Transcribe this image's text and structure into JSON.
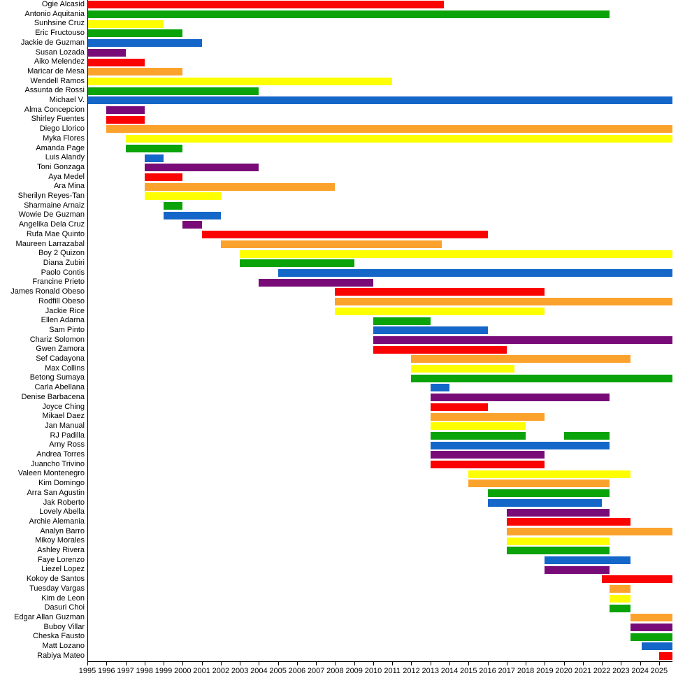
{
  "chart_data": {
    "type": "bar",
    "variant": "horizontal-timeline-gantt",
    "title": "",
    "xlabel": "",
    "ylabel": "",
    "grid": false,
    "legend": "none",
    "xlim": [
      1995,
      2025.7
    ],
    "x_ticks": [
      1995,
      1996,
      1997,
      1998,
      1999,
      2000,
      2001,
      2002,
      2003,
      2004,
      2005,
      2006,
      2007,
      2008,
      2009,
      2010,
      2011,
      2012,
      2013,
      2014,
      2015,
      2016,
      2017,
      2018,
      2019,
      2020,
      2021,
      2022,
      2023,
      2024,
      2025
    ],
    "palette": {
      "red": "#FA0303",
      "orange": "#FBA22C",
      "yellow": "#FDFE00",
      "green": "#0AA30A",
      "blue": "#1467C8",
      "purple": "#780B78"
    },
    "axis_color": "#000000",
    "people": [
      {
        "name": "Ogie Alcasid",
        "color": "red",
        "segments": [
          [
            1995,
            2013.7
          ]
        ]
      },
      {
        "name": "Antonio Aquitania",
        "color": "green",
        "segments": [
          [
            1995,
            2022.4
          ]
        ]
      },
      {
        "name": "Sunhsine Cruz",
        "color": "yellow",
        "segments": [
          [
            1995,
            1999
          ]
        ]
      },
      {
        "name": "Eric Fructouso",
        "color": "green",
        "segments": [
          [
            1995,
            2000
          ]
        ]
      },
      {
        "name": "Jackie de Guzman",
        "color": "blue",
        "segments": [
          [
            1995,
            2001
          ]
        ]
      },
      {
        "name": "Susan Lozada",
        "color": "purple",
        "segments": [
          [
            1995,
            1997
          ]
        ]
      },
      {
        "name": "Aiko Melendez",
        "color": "red",
        "segments": [
          [
            1995,
            1998
          ]
        ]
      },
      {
        "name": "Maricar de Mesa",
        "color": "orange",
        "segments": [
          [
            1995,
            2000
          ]
        ]
      },
      {
        "name": "Wendell Ramos",
        "color": "yellow",
        "segments": [
          [
            1995,
            2011
          ]
        ]
      },
      {
        "name": "Assunta de Rossi",
        "color": "green",
        "segments": [
          [
            1995,
            2004
          ]
        ]
      },
      {
        "name": "Michael V.",
        "color": "blue",
        "segments": [
          [
            1995,
            2025.7
          ]
        ]
      },
      {
        "name": "Alma Concepcion",
        "color": "purple",
        "segments": [
          [
            1996,
            1998
          ]
        ]
      },
      {
        "name": "Shirley Fuentes",
        "color": "red",
        "segments": [
          [
            1996,
            1998
          ]
        ]
      },
      {
        "name": "Diego Llorico",
        "color": "orange",
        "segments": [
          [
            1996,
            2025.7
          ]
        ]
      },
      {
        "name": "Myka Flores",
        "color": "yellow",
        "segments": [
          [
            1997,
            2025.7
          ]
        ]
      },
      {
        "name": "Amanda Page",
        "color": "green",
        "segments": [
          [
            1997,
            2000
          ]
        ]
      },
      {
        "name": "Luis Alandy",
        "color": "blue",
        "segments": [
          [
            1998,
            1999
          ]
        ]
      },
      {
        "name": "Toni Gonzaga",
        "color": "purple",
        "segments": [
          [
            1998,
            2004
          ]
        ]
      },
      {
        "name": "Aya Medel",
        "color": "red",
        "segments": [
          [
            1998,
            2000
          ]
        ]
      },
      {
        "name": "Ara Mina",
        "color": "orange",
        "segments": [
          [
            1998,
            2008
          ]
        ]
      },
      {
        "name": "Sherilyn Reyes-Tan",
        "color": "yellow",
        "segments": [
          [
            1998,
            2002
          ]
        ]
      },
      {
        "name": "Sharmaine Arnaiz",
        "color": "green",
        "segments": [
          [
            1999,
            2000
          ]
        ]
      },
      {
        "name": "Wowie De Guzman",
        "color": "blue",
        "segments": [
          [
            1999,
            2002
          ]
        ]
      },
      {
        "name": "Angelika Dela Cruz",
        "color": "purple",
        "segments": [
          [
            2000,
            2001
          ]
        ]
      },
      {
        "name": "Rufa Mae Quinto",
        "color": "red",
        "segments": [
          [
            2001,
            2016
          ]
        ]
      },
      {
        "name": "Maureen Larrazabal",
        "color": "orange",
        "segments": [
          [
            2002,
            2013.6
          ]
        ]
      },
      {
        "name": "Boy 2 Quizon",
        "color": "yellow",
        "segments": [
          [
            2003,
            2025.7
          ]
        ]
      },
      {
        "name": "Diana Zubiri",
        "color": "green",
        "segments": [
          [
            2003,
            2009
          ]
        ]
      },
      {
        "name": "Paolo Contis",
        "color": "blue",
        "segments": [
          [
            2005,
            2025.7
          ]
        ]
      },
      {
        "name": "Francine Prieto",
        "color": "purple",
        "segments": [
          [
            2004,
            2010
          ]
        ]
      },
      {
        "name": "James Ronald Obeso",
        "color": "red",
        "segments": [
          [
            2008,
            2019
          ]
        ]
      },
      {
        "name": "Rodfill Obeso",
        "color": "orange",
        "segments": [
          [
            2008,
            2025.7
          ]
        ]
      },
      {
        "name": "Jackie Rice",
        "color": "yellow",
        "segments": [
          [
            2008,
            2019
          ]
        ]
      },
      {
        "name": "Ellen Adarna",
        "color": "green",
        "segments": [
          [
            2010,
            2013
          ]
        ]
      },
      {
        "name": "Sam Pinto",
        "color": "blue",
        "segments": [
          [
            2010,
            2016
          ]
        ]
      },
      {
        "name": "Chariz Solomon",
        "color": "purple",
        "segments": [
          [
            2010,
            2025.7
          ]
        ]
      },
      {
        "name": "Gwen Zamora",
        "color": "red",
        "segments": [
          [
            2010,
            2017
          ]
        ]
      },
      {
        "name": "Sef Cadayona",
        "color": "orange",
        "segments": [
          [
            2012,
            2023.5
          ]
        ]
      },
      {
        "name": "Max Collins",
        "color": "yellow",
        "segments": [
          [
            2012,
            2017.4
          ]
        ]
      },
      {
        "name": "Betong Sumaya",
        "color": "green",
        "segments": [
          [
            2012,
            2025.7
          ]
        ]
      },
      {
        "name": "Carla Abellana",
        "color": "blue",
        "segments": [
          [
            2013,
            2014
          ]
        ]
      },
      {
        "name": "Denise Barbacena",
        "color": "purple",
        "segments": [
          [
            2013,
            2022.4
          ]
        ]
      },
      {
        "name": "Joyce Ching",
        "color": "red",
        "segments": [
          [
            2013,
            2016
          ]
        ]
      },
      {
        "name": "Mikael Daez",
        "color": "orange",
        "segments": [
          [
            2013,
            2019
          ]
        ]
      },
      {
        "name": "Jan Manual",
        "color": "yellow",
        "segments": [
          [
            2013,
            2018
          ]
        ]
      },
      {
        "name": "RJ Padilla",
        "color": "green",
        "segments": [
          [
            2013,
            2018
          ],
          [
            2020,
            2022.4
          ]
        ]
      },
      {
        "name": "Arny Ross",
        "color": "blue",
        "segments": [
          [
            2013,
            2022.4
          ]
        ]
      },
      {
        "name": "Andrea Torres",
        "color": "purple",
        "segments": [
          [
            2013,
            2019
          ]
        ]
      },
      {
        "name": "Juancho Trivino",
        "color": "red",
        "segments": [
          [
            2013,
            2019
          ]
        ]
      },
      {
        "name": "Valeen Montenegro",
        "color": "yellow",
        "segments": [
          [
            2015,
            2023.5
          ]
        ]
      },
      {
        "name": "Kim Domingo",
        "color": "orange",
        "segments": [
          [
            2015,
            2022.4
          ]
        ]
      },
      {
        "name": "Arra San Agustin",
        "color": "green",
        "segments": [
          [
            2016,
            2022.4
          ]
        ]
      },
      {
        "name": "Jak Roberto",
        "color": "blue",
        "segments": [
          [
            2016,
            2022
          ]
        ]
      },
      {
        "name": "Lovely Abella",
        "color": "purple",
        "segments": [
          [
            2017,
            2022.4
          ]
        ]
      },
      {
        "name": "Archie Alemania",
        "color": "red",
        "segments": [
          [
            2017,
            2023.5
          ]
        ]
      },
      {
        "name": "Analyn Barro",
        "color": "orange",
        "segments": [
          [
            2017,
            2025.7
          ]
        ]
      },
      {
        "name": "Mikoy Morales",
        "color": "yellow",
        "segments": [
          [
            2017,
            2022.4
          ]
        ]
      },
      {
        "name": "Ashley Rivera",
        "color": "green",
        "segments": [
          [
            2017,
            2022.4
          ]
        ]
      },
      {
        "name": "Faye Lorenzo",
        "color": "blue",
        "segments": [
          [
            2019,
            2023.5
          ]
        ]
      },
      {
        "name": "Liezel Lopez",
        "color": "purple",
        "segments": [
          [
            2019,
            2022.4
          ]
        ]
      },
      {
        "name": "Kokoy de Santos",
        "color": "red",
        "segments": [
          [
            2022,
            2025.7
          ]
        ]
      },
      {
        "name": "Tuesday Vargas",
        "color": "orange",
        "segments": [
          [
            2022.4,
            2023.5
          ]
        ]
      },
      {
        "name": "Kim de Leon",
        "color": "yellow",
        "segments": [
          [
            2022.4,
            2023.5
          ]
        ]
      },
      {
        "name": "Dasuri Choi",
        "color": "green",
        "segments": [
          [
            2022.4,
            2023.5
          ]
        ]
      },
      {
        "name": "Edgar Allan Guzman",
        "color": "orange",
        "segments": [
          [
            2023.5,
            2025.7
          ]
        ]
      },
      {
        "name": "Buboy Villar",
        "color": "purple",
        "segments": [
          [
            2023.5,
            2025.7
          ]
        ]
      },
      {
        "name": "Cheska Fausto",
        "color": "green",
        "segments": [
          [
            2023.5,
            2025.7
          ]
        ]
      },
      {
        "name": "Matt Lozano",
        "color": "blue",
        "segments": [
          [
            2024.1,
            2025.7
          ]
        ]
      },
      {
        "name": "Rabiya Mateo",
        "color": "red",
        "segments": [
          [
            2025,
            2025.7
          ]
        ]
      }
    ]
  }
}
